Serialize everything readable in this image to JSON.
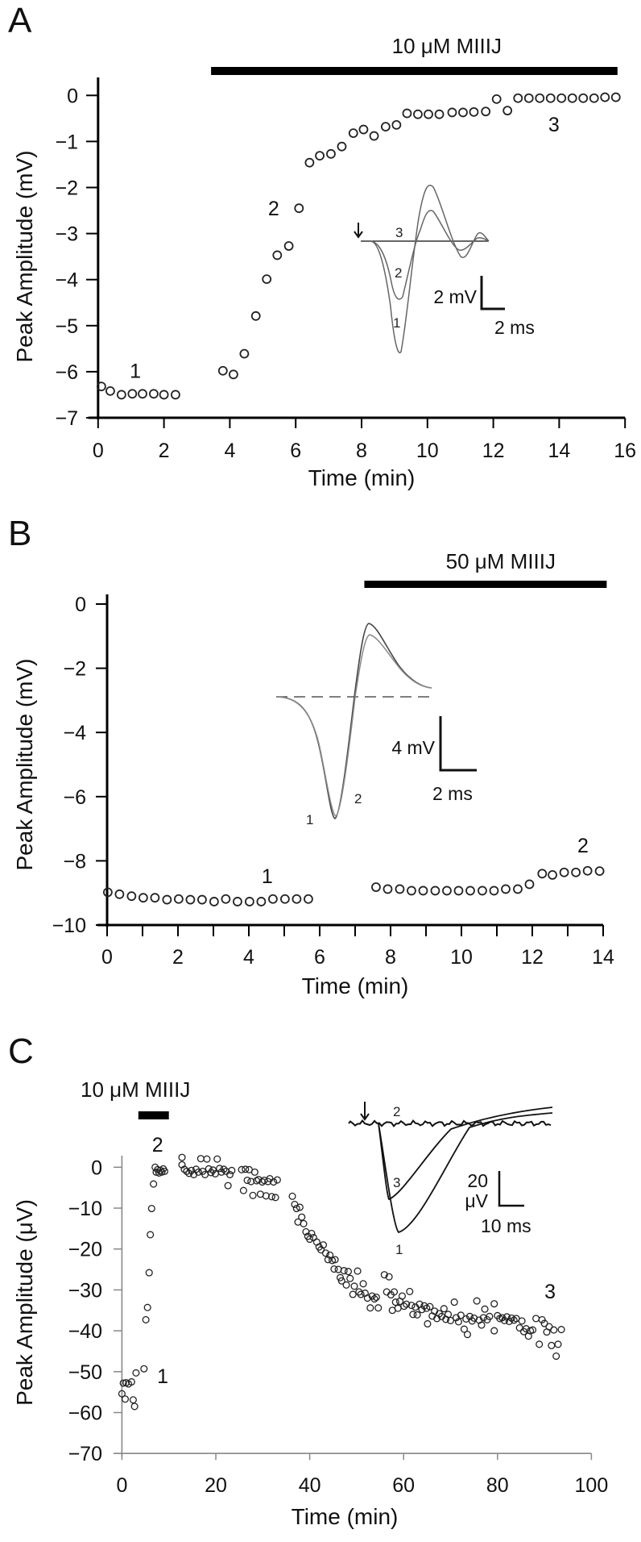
{
  "figure": {
    "panel_labels": [
      "A",
      "B",
      "C"
    ]
  },
  "chart_data": [
    {
      "panel": "A",
      "type": "scatter",
      "xlabel": "Time (min)",
      "ylabel": "Peak Amplitude (mV)",
      "xlim": [
        0,
        16
      ],
      "ylim": [
        -7,
        0
      ],
      "xticks": [
        0,
        2,
        4,
        6,
        8,
        10,
        12,
        14,
        16
      ],
      "xtick_labels": [
        "0",
        "2",
        "4",
        "6",
        "8",
        "10",
        "12",
        "14",
        "16"
      ],
      "yticks": [
        0,
        -1,
        -2,
        -3,
        -4,
        -5,
        -6,
        -7
      ],
      "ytick_labels": [
        "0",
        "−1",
        "−2",
        "−3",
        "−4",
        "−5",
        "−6",
        "−7"
      ],
      "treatment": {
        "label": "10 μM MIIIJ",
        "start": 3.43,
        "end": 15.77
      },
      "points": [
        [
          0.1,
          -6.32
        ],
        [
          0.37,
          -6.42
        ],
        [
          0.71,
          -6.5
        ],
        [
          1.04,
          -6.48
        ],
        [
          1.35,
          -6.48
        ],
        [
          1.69,
          -6.48
        ],
        [
          2.0,
          -6.5
        ],
        [
          2.35,
          -6.5
        ],
        [
          3.79,
          -5.98
        ],
        [
          4.11,
          -6.06
        ],
        [
          4.44,
          -5.61
        ],
        [
          4.79,
          -4.79
        ],
        [
          5.12,
          -3.99
        ],
        [
          5.44,
          -3.47
        ],
        [
          5.79,
          -3.27
        ],
        [
          6.1,
          -2.45
        ],
        [
          6.42,
          -1.46
        ],
        [
          6.73,
          -1.31
        ],
        [
          7.07,
          -1.27
        ],
        [
          7.4,
          -1.11
        ],
        [
          7.75,
          -0.82
        ],
        [
          8.06,
          -0.74
        ],
        [
          8.38,
          -0.88
        ],
        [
          8.73,
          -0.68
        ],
        [
          9.06,
          -0.64
        ],
        [
          9.38,
          -0.39
        ],
        [
          9.71,
          -0.41
        ],
        [
          10.03,
          -0.41
        ],
        [
          10.36,
          -0.41
        ],
        [
          10.75,
          -0.37
        ],
        [
          11.08,
          -0.37
        ],
        [
          11.41,
          -0.36
        ],
        [
          11.77,
          -0.35
        ],
        [
          12.1,
          -0.08
        ],
        [
          12.43,
          -0.33
        ],
        [
          12.75,
          -0.06
        ],
        [
          13.08,
          -0.06
        ],
        [
          13.41,
          -0.06
        ],
        [
          13.74,
          -0.06
        ],
        [
          14.07,
          -0.06
        ],
        [
          14.4,
          -0.06
        ],
        [
          14.73,
          -0.06
        ],
        [
          15.06,
          -0.06
        ],
        [
          15.39,
          -0.04
        ],
        [
          15.72,
          -0.04
        ]
      ],
      "annotations": [
        {
          "text": "1",
          "x": 1.13,
          "y": -6.13
        },
        {
          "text": "2",
          "x": 5.33,
          "y": -2.6
        },
        {
          "text": "3",
          "x": 13.84,
          "y": -0.78
        }
      ],
      "inset": {
        "trace_labels": [
          "1",
          "2",
          "3"
        ],
        "scale_v": "2 mV",
        "scale_h": "2 ms"
      }
    },
    {
      "panel": "B",
      "type": "scatter",
      "xlabel": "Time (min)",
      "ylabel": "Peak Amplitude (mV)",
      "xlim": [
        0,
        14
      ],
      "ylim": [
        -10,
        0
      ],
      "xticks": [
        0,
        2,
        4,
        6,
        8,
        10,
        12,
        14
      ],
      "xtick_labels": [
        "0",
        "2",
        "4",
        "6",
        "8",
        "10",
        "12",
        "14"
      ],
      "yticks": [
        0,
        -2,
        -4,
        -6,
        -8,
        -10
      ],
      "ytick_labels": [
        "0",
        "−2",
        "−4",
        "−6",
        "−8",
        "−10"
      ],
      "treatment": {
        "label": "50 μM MIIIJ",
        "start": 7.26,
        "end": 14.1
      },
      "points": [
        [
          0.02,
          -8.98
        ],
        [
          0.35,
          -9.04
        ],
        [
          0.69,
          -9.1
        ],
        [
          1.02,
          -9.15
        ],
        [
          1.35,
          -9.15
        ],
        [
          1.69,
          -9.21
        ],
        [
          2.02,
          -9.19
        ],
        [
          2.35,
          -9.21
        ],
        [
          2.68,
          -9.21
        ],
        [
          3.02,
          -9.27
        ],
        [
          3.35,
          -9.19
        ],
        [
          3.68,
          -9.27
        ],
        [
          4.02,
          -9.27
        ],
        [
          4.35,
          -9.27
        ],
        [
          4.68,
          -9.19
        ],
        [
          5.02,
          -9.19
        ],
        [
          5.35,
          -9.19
        ],
        [
          5.68,
          -9.19
        ],
        [
          7.59,
          -8.82
        ],
        [
          7.92,
          -8.88
        ],
        [
          8.26,
          -8.88
        ],
        [
          8.59,
          -8.93
        ],
        [
          8.92,
          -8.93
        ],
        [
          9.26,
          -8.93
        ],
        [
          9.59,
          -8.93
        ],
        [
          9.92,
          -8.93
        ],
        [
          10.25,
          -8.93
        ],
        [
          10.59,
          -8.93
        ],
        [
          10.92,
          -8.93
        ],
        [
          11.25,
          -8.88
        ],
        [
          11.59,
          -8.88
        ],
        [
          11.92,
          -8.73
        ],
        [
          12.28,
          -8.4
        ],
        [
          12.57,
          -8.44
        ],
        [
          12.9,
          -8.36
        ],
        [
          13.23,
          -8.36
        ],
        [
          13.56,
          -8.31
        ],
        [
          13.9,
          -8.32
        ]
      ],
      "annotations": [
        {
          "text": "1",
          "x": 4.52,
          "y": -8.69
        },
        {
          "text": "2",
          "x": 13.43,
          "y": -7.74
        }
      ],
      "inset": {
        "trace_labels": [
          "1",
          "2"
        ],
        "scale_v": "4 mV",
        "scale_h": "2 ms"
      }
    },
    {
      "panel": "C",
      "type": "scatter",
      "xlabel": "Time (min)",
      "ylabel": "Peak Amplitude (μV)",
      "xlim": [
        0,
        100
      ],
      "ylim": [
        -70,
        0
      ],
      "xticks": [
        0,
        20,
        40,
        60,
        80,
        100
      ],
      "xtick_labels": [
        "0",
        "20",
        "40",
        "60",
        "80",
        "100"
      ],
      "yticks": [
        0,
        -10,
        -20,
        -30,
        -40,
        -50,
        -60,
        -70
      ],
      "ytick_labels": [
        "0",
        "−10",
        "−20",
        "−30",
        "−40",
        "−50",
        "−60",
        "−70"
      ],
      "treatment": {
        "label": "10 μM MIIIJ",
        "start": 3.5,
        "end": 10.0
      },
      "points": [
        [
          0,
          -55.4
        ],
        [
          0.7,
          -56.7
        ],
        [
          0.3,
          -52.8
        ],
        [
          0.9,
          -52.7
        ],
        [
          1.4,
          -53
        ],
        [
          2.05,
          -52.5
        ],
        [
          2.4,
          -56.9
        ],
        [
          2.7,
          -58.5
        ],
        [
          3,
          -50.3
        ],
        [
          4.7,
          -49.3
        ],
        [
          5.1,
          -37.3
        ],
        [
          5.45,
          -34.3
        ],
        [
          5.8,
          -25.8
        ],
        [
          6.05,
          -16.5
        ],
        [
          6.33,
          -10.1
        ],
        [
          6.73,
          -4.1
        ],
        [
          7.08,
          0
        ],
        [
          7.3,
          -1.2
        ],
        [
          7.6,
          -0.6
        ],
        [
          7.9,
          -1.4
        ],
        [
          8.2,
          -0.8
        ],
        [
          8.5,
          -1.2
        ],
        [
          8.8,
          -0.4
        ],
        [
          9.1,
          -1.0
        ],
        [
          12.8,
          2.4
        ],
        [
          12.8,
          0.6
        ],
        [
          13.3,
          -0.5
        ],
        [
          13.8,
          -1.0
        ],
        [
          14.3,
          -1.5
        ],
        [
          14.8,
          -0.8
        ],
        [
          15.3,
          -1.8
        ],
        [
          15.8,
          -0.5
        ],
        [
          16.3,
          -1.2
        ],
        [
          16.8,
          2.1
        ],
        [
          17.2,
          -1.0
        ],
        [
          17.7,
          -1.8
        ],
        [
          18.1,
          2.0
        ],
        [
          18.5,
          -0.4
        ],
        [
          19,
          -1.3
        ],
        [
          19.4,
          -0.7
        ],
        [
          19.9,
          -1.6
        ],
        [
          20.3,
          2.0
        ],
        [
          20.8,
          -0.3
        ],
        [
          21.2,
          -1.2
        ],
        [
          21.7,
          -0.5
        ],
        [
          22.2,
          -1.0
        ],
        [
          22.6,
          -4.5
        ],
        [
          23,
          -1.8
        ],
        [
          23.4,
          -0.8
        ],
        [
          25.5,
          -0.6
        ],
        [
          25.9,
          -5.7
        ],
        [
          26.3,
          -0.5
        ],
        [
          26.7,
          -3.2
        ],
        [
          27.1,
          -0.6
        ],
        [
          27.5,
          -3.5
        ],
        [
          27.9,
          -6.9
        ],
        [
          28.3,
          -1.2
        ],
        [
          28.7,
          -3.3
        ],
        [
          29.1,
          -3.0
        ],
        [
          29.5,
          -6.6
        ],
        [
          29.9,
          -3.6
        ],
        [
          30.3,
          -3.2
        ],
        [
          30.7,
          -7.0
        ],
        [
          31.1,
          -3.5
        ],
        [
          31.5,
          -2.8
        ],
        [
          31.9,
          -7.2
        ],
        [
          32.3,
          -3.6
        ],
        [
          32.7,
          -7.4
        ],
        [
          33.1,
          -3.1
        ],
        [
          36.3,
          -7.1
        ],
        [
          36.8,
          -9.1
        ],
        [
          37.2,
          -10.1
        ],
        [
          37.5,
          -13.4
        ],
        [
          37.9,
          -9.8
        ],
        [
          38.3,
          -12.2
        ],
        [
          38.7,
          -13.8
        ],
        [
          39.2,
          -15.8
        ],
        [
          39.6,
          -16.9
        ],
        [
          40.0,
          -17.6
        ],
        [
          40.4,
          -16.2
        ],
        [
          40.8,
          -17.2
        ],
        [
          41.5,
          -18.3
        ],
        [
          42,
          -19.5
        ],
        [
          42.4,
          -20.2
        ],
        [
          42.9,
          -19.0
        ],
        [
          43.4,
          -21.0
        ],
        [
          43.9,
          -22.6
        ],
        [
          44.3,
          -21.5
        ],
        [
          44.8,
          -22.8
        ],
        [
          45.2,
          -24.9
        ],
        [
          45.4,
          -22.6
        ],
        [
          46.1,
          -25.0
        ],
        [
          46.5,
          -27.0
        ],
        [
          46.8,
          -27.8
        ],
        [
          47.3,
          -25.3
        ],
        [
          47.8,
          -28.8
        ],
        [
          48.2,
          -25.5
        ],
        [
          48.6,
          -27.2
        ],
        [
          49.2,
          -31.1
        ],
        [
          49.5,
          -29.1
        ],
        [
          50.2,
          -25.4
        ],
        [
          50.5,
          -30.5
        ],
        [
          50.9,
          -31.1
        ],
        [
          51.4,
          -28.5
        ],
        [
          51.8,
          -30.8
        ],
        [
          52.3,
          -32.0
        ],
        [
          52.9,
          -34.4
        ],
        [
          53.3,
          -31.5
        ],
        [
          53.8,
          -32.2
        ],
        [
          54.2,
          -31.8
        ],
        [
          54.6,
          -34.4
        ],
        [
          55.9,
          -26.3
        ],
        [
          56.4,
          -30.5
        ],
        [
          56.9,
          -26.8
        ],
        [
          57.3,
          -31.2
        ],
        [
          57.6,
          -35.0
        ],
        [
          58.0,
          -30.5
        ],
        [
          58.3,
          -33.0
        ],
        [
          58.8,
          -34.5
        ],
        [
          59.2,
          -32.8
        ],
        [
          59.7,
          -31.5
        ],
        [
          60.1,
          -34.0
        ],
        [
          60.6,
          -33.5
        ],
        [
          61.3,
          -30.4
        ],
        [
          61.7,
          -33.8
        ],
        [
          62.0,
          -36.0
        ],
        [
          62.5,
          -34.2
        ],
        [
          62.9,
          -36.1
        ],
        [
          63.4,
          -33.5
        ],
        [
          63.9,
          -34.8
        ],
        [
          64.4,
          -33.9
        ],
        [
          64.9,
          -34.5
        ],
        [
          65.1,
          -38.3
        ],
        [
          65.6,
          -34.1
        ],
        [
          66.1,
          -36.4
        ],
        [
          66.6,
          -35.2
        ],
        [
          67.1,
          -37.0
        ],
        [
          67.6,
          -35.8
        ],
        [
          68.1,
          -36.5
        ],
        [
          68.6,
          -34.6
        ],
        [
          69.0,
          -37.2
        ],
        [
          69.5,
          -36.0
        ],
        [
          70.0,
          -37.5
        ],
        [
          70.8,
          -33.0
        ],
        [
          71.2,
          -36.8
        ],
        [
          71.7,
          -37.8
        ],
        [
          72.2,
          -36.2
        ],
        [
          72.9,
          -39.6
        ],
        [
          73.3,
          -37.1
        ],
        [
          73.6,
          -40.9
        ],
        [
          74.1,
          -36.5
        ],
        [
          74.6,
          -37.6
        ],
        [
          75.0,
          -36.9
        ],
        [
          75.6,
          -32.7
        ],
        [
          76.1,
          -37.4
        ],
        [
          76.6,
          -38.6
        ],
        [
          77.0,
          -36.8
        ],
        [
          77.3,
          -34.7
        ],
        [
          77.8,
          -37.3
        ],
        [
          78.3,
          -36.5
        ],
        [
          79.3,
          -33.4
        ],
        [
          79.3,
          -40.0
        ],
        [
          80.0,
          -36.3
        ],
        [
          80.5,
          -37.0
        ],
        [
          81.0,
          -36.8
        ],
        [
          81.5,
          -37.5
        ],
        [
          82.0,
          -36.6
        ],
        [
          82.5,
          -37.7
        ],
        [
          83.0,
          -36.9
        ],
        [
          83.5,
          -37.4
        ],
        [
          84.0,
          -37.0
        ],
        [
          84.7,
          -39.3
        ],
        [
          85.2,
          -37.6
        ],
        [
          85.6,
          -40.2
        ],
        [
          86.1,
          -39.5
        ],
        [
          86.6,
          -41.3
        ],
        [
          87.0,
          -40.0
        ],
        [
          87.5,
          -39.8
        ],
        [
          88.2,
          -37.0
        ],
        [
          88.9,
          -43.3
        ],
        [
          89.5,
          -37.3
        ],
        [
          90.0,
          -38.2
        ],
        [
          90.5,
          -40.3
        ],
        [
          91.0,
          -39.0
        ],
        [
          91.5,
          -43.6
        ],
        [
          92.0,
          -39.8
        ],
        [
          92.5,
          -46.2
        ],
        [
          92.9,
          -43.3
        ],
        [
          93.6,
          -39.7
        ]
      ],
      "annotations": [
        {
          "text": "2",
          "x": 7.6,
          "y": 3.8
        },
        {
          "text": "1",
          "x": 8.7,
          "y": -52.8
        },
        {
          "text": "3",
          "x": 91.2,
          "y": -32.1
        }
      ],
      "inset": {
        "trace_labels": [
          "1",
          "2",
          "3"
        ],
        "scale_v_top": "20",
        "scale_v_bottom": "μV",
        "scale_h": "10 ms"
      }
    }
  ]
}
